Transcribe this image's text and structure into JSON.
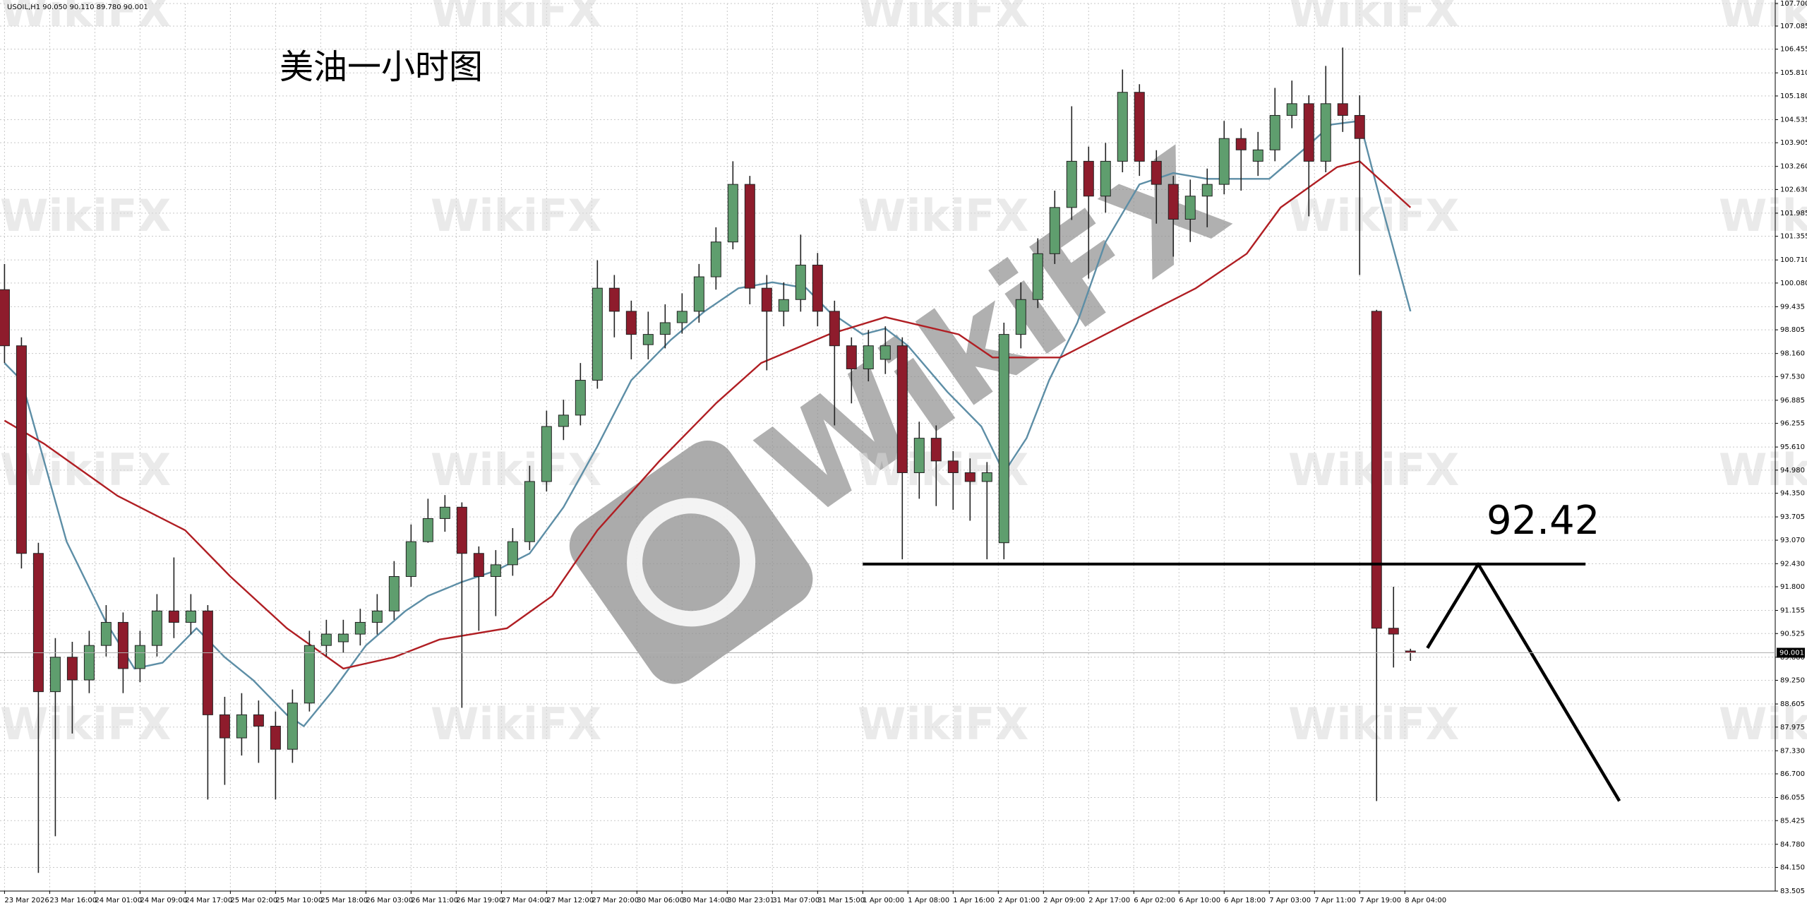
{
  "chart_data": {
    "type": "candlestick",
    "header": "USOIL,H1  90.050 90.110 89.780 90.001",
    "title": "美油一小时图",
    "watermark": "WikiFX",
    "x": [
      0,
      3,
      6,
      9,
      12,
      15,
      18,
      21,
      24,
      27,
      30,
      33,
      36,
      39,
      42,
      45,
      48,
      51,
      54,
      57,
      60,
      63,
      66,
      69,
      72,
      75,
      78,
      81,
      84,
      87,
      90,
      93,
      96,
      99,
      102,
      105,
      108,
      111,
      114,
      117,
      120,
      123,
      126,
      129,
      132,
      135,
      138,
      141,
      144,
      147,
      150,
      153,
      156,
      159,
      162,
      165,
      168,
      171,
      174,
      177,
      180,
      183,
      186,
      189,
      192,
      195,
      198,
      201,
      204,
      207,
      210,
      213,
      216,
      219,
      222,
      225,
      228,
      231,
      234,
      237,
      240,
      243,
      246,
      249
    ],
    "open": [
      99.9,
      98.37,
      92.71,
      88.94,
      89.88,
      89.26,
      90.2,
      90.83,
      89.57,
      90.2,
      91.14,
      90.83,
      91.14,
      88.31,
      87.68,
      88.31,
      88,
      87.37,
      88.63,
      90.2,
      90.3,
      90.51,
      90.83,
      91.14,
      92.08,
      93.03,
      93.66,
      93.97,
      92.71,
      92.08,
      92.4,
      93.03,
      94.67,
      96.17,
      96.48,
      97.43,
      99.94,
      99.31,
      98.4,
      98.68,
      99,
      99.31,
      100.25,
      101.2,
      102.77,
      99.94,
      99.31,
      99.63,
      100.57,
      99.31,
      98.37,
      97.74,
      98,
      98.37,
      94.91,
      95.85,
      95.23,
      94.91,
      94.67,
      93,
      98.68,
      99.63,
      100.88,
      102.14,
      103.4,
      102.45,
      103.4,
      105.28,
      103.4,
      102.77,
      101.82,
      102.45,
      102.77,
      104.02,
      103.4,
      103.71,
      104.65,
      104.97,
      103.4,
      104.97,
      104.65,
      99.31,
      90.67,
      90.05
    ],
    "high": [
      100.6,
      98.6,
      93,
      90.4,
      90.3,
      90.6,
      91.3,
      91.1,
      90.6,
      91.6,
      92.6,
      91.6,
      91.3,
      88.8,
      88.9,
      88.7,
      88.4,
      89,
      90.6,
      90.9,
      90.9,
      91.2,
      91.6,
      92.5,
      93.5,
      94.2,
      94.3,
      94.1,
      92.9,
      92.8,
      93.4,
      95.1,
      96.6,
      96.9,
      97.9,
      100.7,
      100.3,
      99.6,
      99.3,
      99.5,
      99.8,
      100.6,
      101.6,
      103.4,
      103,
      100.3,
      100.1,
      101.4,
      100.9,
      99.6,
      98.6,
      98.8,
      98.9,
      98.6,
      96.3,
      96.2,
      95.5,
      95.3,
      95.2,
      99,
      100.1,
      101.3,
      102.6,
      104.9,
      103.8,
      103.9,
      105.9,
      105.5,
      103.7,
      103,
      102.9,
      103.2,
      104.5,
      104.3,
      104.2,
      105.4,
      105.6,
      105.2,
      106,
      106.5,
      105.2,
      99.35,
      91.8,
      90.11
    ],
    "low": [
      97.9,
      92.3,
      84,
      85,
      87.8,
      88.9,
      89.9,
      88.9,
      89.2,
      89.9,
      90.4,
      90.5,
      86,
      86.4,
      87.2,
      87,
      86,
      87,
      88.4,
      89.9,
      90,
      90.2,
      90.5,
      90.9,
      91.8,
      93,
      93.3,
      88.5,
      90.6,
      91,
      92.1,
      92.8,
      94.4,
      95.8,
      96.2,
      97.2,
      98.6,
      98,
      98,
      98.3,
      98.7,
      99,
      99.9,
      101,
      99.5,
      97.7,
      98.9,
      99.3,
      98.9,
      96.2,
      96.8,
      97.4,
      97.6,
      92.55,
      94.2,
      94,
      93.9,
      93.6,
      92.55,
      92.55,
      98.3,
      99.4,
      100.6,
      101.8,
      100.2,
      102,
      103.1,
      103,
      101.7,
      100.8,
      101.2,
      101.6,
      102.5,
      102.6,
      103,
      103.4,
      104.3,
      101.9,
      103.1,
      104.2,
      100.3,
      85.96,
      89.6,
      89.78
    ],
    "close": [
      98.37,
      92.71,
      88.94,
      89.88,
      89.26,
      90.2,
      90.83,
      89.57,
      90.2,
      91.14,
      90.83,
      91.14,
      88.31,
      87.68,
      88.31,
      88,
      87.37,
      88.63,
      90.2,
      90.51,
      90.51,
      90.83,
      91.14,
      92.08,
      93.03,
      93.66,
      93.97,
      92.71,
      92.08,
      92.4,
      93.03,
      94.67,
      96.17,
      96.48,
      97.43,
      99.94,
      99.31,
      98.68,
      98.68,
      99,
      99.31,
      100.25,
      101.2,
      102.77,
      99.94,
      99.31,
      99.63,
      100.57,
      99.31,
      98.37,
      97.74,
      98.37,
      98.37,
      94.91,
      95.85,
      95.23,
      94.91,
      94.67,
      94.91,
      98.68,
      99.63,
      100.88,
      102.14,
      103.4,
      102.45,
      103.4,
      105.28,
      103.4,
      102.77,
      101.82,
      102.45,
      102.77,
      104.02,
      103.71,
      103.71,
      104.65,
      104.97,
      103.4,
      104.97,
      104.65,
      104.02,
      90.67,
      90.51,
      90.001
    ],
    "up_color": "#5f9e6e",
    "down_color": "#8e1c2c",
    "series": [
      {
        "type": "line",
        "color": "#5d8ea6",
        "x": [
          0,
          3,
          7,
          11,
          18,
          23,
          28,
          34,
          39,
          44,
          50,
          53,
          58,
          64,
          71,
          75,
          81,
          87,
          93,
          99,
          105,
          111,
          118,
          124,
          130,
          136,
          142,
          146,
          152,
          156,
          160,
          167,
          173,
          177,
          181,
          185,
          190,
          195,
          201,
          207,
          213,
          220,
          224,
          230,
          235,
          240,
          244,
          249
        ],
        "values": [
          97.9,
          97.43,
          95.23,
          93.03,
          90.83,
          89.57,
          89.73,
          90.67,
          89.88,
          89.26,
          88.31,
          88,
          88.94,
          90.2,
          91.14,
          91.55,
          91.93,
          92.24,
          92.71,
          93.97,
          95.63,
          97.43,
          98.53,
          99.31,
          99.94,
          100.1,
          99.94,
          99.31,
          98.68,
          98.84,
          98.37,
          97.11,
          96.17,
          94.91,
          95.85,
          97.43,
          99,
          101.2,
          102.77,
          103.08,
          102.92,
          102.92,
          102.92,
          103.71,
          104.4,
          104.5,
          102.14,
          99.31
        ]
      },
      {
        "type": "line",
        "color": "#b01e23",
        "x": [
          0,
          7,
          20,
          32,
          40,
          50,
          60,
          69,
          77,
          89,
          97,
          105,
          116,
          126,
          134,
          146,
          156,
          169,
          175,
          187,
          199,
          211,
          220,
          226,
          236,
          240,
          249
        ],
        "values": [
          96.33,
          95.7,
          94.28,
          93.34,
          92.08,
          90.67,
          89.57,
          89.88,
          90.36,
          90.67,
          91.55,
          93.34,
          95.23,
          96.8,
          97.9,
          98.68,
          99.15,
          98.68,
          98.05,
          98.05,
          99,
          99.94,
          100.88,
          102.14,
          103.24,
          103.4,
          102.14
        ]
      }
    ],
    "level": {
      "value": 92.42,
      "label": "92.42",
      "x": [
        152,
        280
      ]
    },
    "projection": {
      "x": [
        252,
        261,
        286
      ],
      "values": [
        90.13,
        92.42,
        85.96
      ],
      "color": "#000000"
    },
    "last_price": {
      "value": 90.001,
      "label": "90.001"
    },
    "xlim": [
      -0.8,
      313.6
    ],
    "xticks": [
      {
        "value": 0,
        "label": "23 Mar 2026"
      },
      {
        "value": 8,
        "label": "23 Mar 16:00"
      },
      {
        "value": 16,
        "label": "24 Mar 01:00"
      },
      {
        "value": 24,
        "label": "24 Mar 09:00"
      },
      {
        "value": 32,
        "label": "24 Mar 17:00"
      },
      {
        "value": 40,
        "label": "25 Mar 02:00"
      },
      {
        "value": 48,
        "label": "25 Mar 10:00"
      },
      {
        "value": 56,
        "label": "25 Mar 18:00"
      },
      {
        "value": 64,
        "label": "26 Mar 03:00"
      },
      {
        "value": 72,
        "label": "26 Mar 11:00"
      },
      {
        "value": 80,
        "label": "26 Mar 19:00"
      },
      {
        "value": 88,
        "label": "27 Mar 04:00"
      },
      {
        "value": 96,
        "label": "27 Mar 12:00"
      },
      {
        "value": 104,
        "label": "27 Mar 20:00"
      },
      {
        "value": 112,
        "label": "30 Mar 06:00"
      },
      {
        "value": 120,
        "label": "30 Mar 14:00"
      },
      {
        "value": 128,
        "label": "30 Mar 23:01"
      },
      {
        "value": 136,
        "label": "31 Mar 07:00"
      },
      {
        "value": 144,
        "label": "31 Mar 15:00"
      },
      {
        "value": 152,
        "label": "1 Apr 00:00"
      },
      {
        "value": 160,
        "label": "1 Apr 08:00"
      },
      {
        "value": 168,
        "label": "1 Apr 16:00"
      },
      {
        "value": 176,
        "label": "2 Apr 01:00"
      },
      {
        "value": 184,
        "label": "2 Apr 09:00"
      },
      {
        "value": 192,
        "label": "2 Apr 17:00"
      },
      {
        "value": 200,
        "label": "6 Apr 02:00"
      },
      {
        "value": 208,
        "label": "6 Apr 10:00"
      },
      {
        "value": 216,
        "label": "6 Apr 18:00"
      },
      {
        "value": 224,
        "label": "7 Apr 03:00"
      },
      {
        "value": 232,
        "label": "7 Apr 11:00"
      },
      {
        "value": 240,
        "label": "7 Apr 19:00"
      },
      {
        "value": 248,
        "label": "8 Apr 04:00"
      }
    ],
    "ylim": [
      83.505,
      107.7
    ],
    "yticks": [
      {
        "value": 107.7,
        "label": "107.700"
      },
      107.085,
      106.455,
      {
        "value": 105.81,
        "label": "105.810"
      },
      {
        "value": 105.18,
        "label": "105.180"
      },
      104.535,
      103.905,
      {
        "value": 103.26,
        "label": "103.260"
      },
      {
        "value": 102.63,
        "label": "102.630"
      },
      101.985,
      101.355,
      {
        "value": 100.71,
        "label": "100.710"
      },
      {
        "value": 100.08,
        "label": "100.080"
      },
      99.435,
      98.805,
      {
        "value": 98.16,
        "label": "98.160"
      },
      {
        "value": 97.53,
        "label": "97.530"
      },
      96.885,
      96.255,
      {
        "value": 95.61,
        "label": "95.610"
      },
      {
        "value": 94.98,
        "label": "94.980"
      },
      {
        "value": 94.35,
        "label": "94.350"
      },
      93.705,
      {
        "value": 93.07,
        "label": "93.070"
      },
      {
        "value": 92.43,
        "label": "92.430"
      },
      {
        "value": 91.8,
        "label": "91.800"
      },
      91.155,
      90.525,
      {
        "value": 89.88,
        "label": "89.880"
      },
      {
        "value": 89.25,
        "label": "89.250"
      },
      88.605,
      87.975,
      {
        "value": 87.33,
        "label": "87.330"
      },
      {
        "value": 86.7,
        "label": "86.700"
      },
      86.055,
      85.425,
      {
        "value": 84.78,
        "label": "84.780"
      },
      {
        "value": 84.15,
        "label": "84.150"
      },
      83.505
    ],
    "grid": true
  }
}
